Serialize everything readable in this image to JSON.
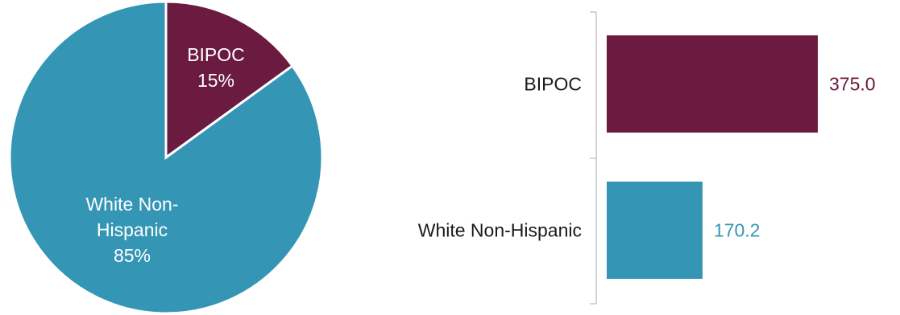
{
  "colors": {
    "bipoc": "#6b1b40",
    "white_non_hispanic": "#3496b4",
    "axis": "#c8c8c8"
  },
  "chart_data": [
    {
      "type": "pie",
      "categories": [
        "BIPOC",
        "White Non-Hispanic"
      ],
      "values": [
        15,
        85
      ],
      "labels": [
        {
          "lines": [
            "BIPOC",
            "15%"
          ]
        },
        {
          "lines": [
            "White Non-",
            "Hispanic",
            "85%"
          ]
        }
      ],
      "colors": [
        "#6b1b40",
        "#3496b4"
      ]
    },
    {
      "type": "bar",
      "orientation": "horizontal",
      "categories": [
        "BIPOC",
        "White Non-Hispanic"
      ],
      "values": [
        375.0,
        170.2
      ],
      "value_labels": [
        "375.0",
        "170.2"
      ],
      "colors": [
        "#6b1b40",
        "#3496b4"
      ],
      "xlim": [
        0,
        375.0
      ]
    }
  ]
}
